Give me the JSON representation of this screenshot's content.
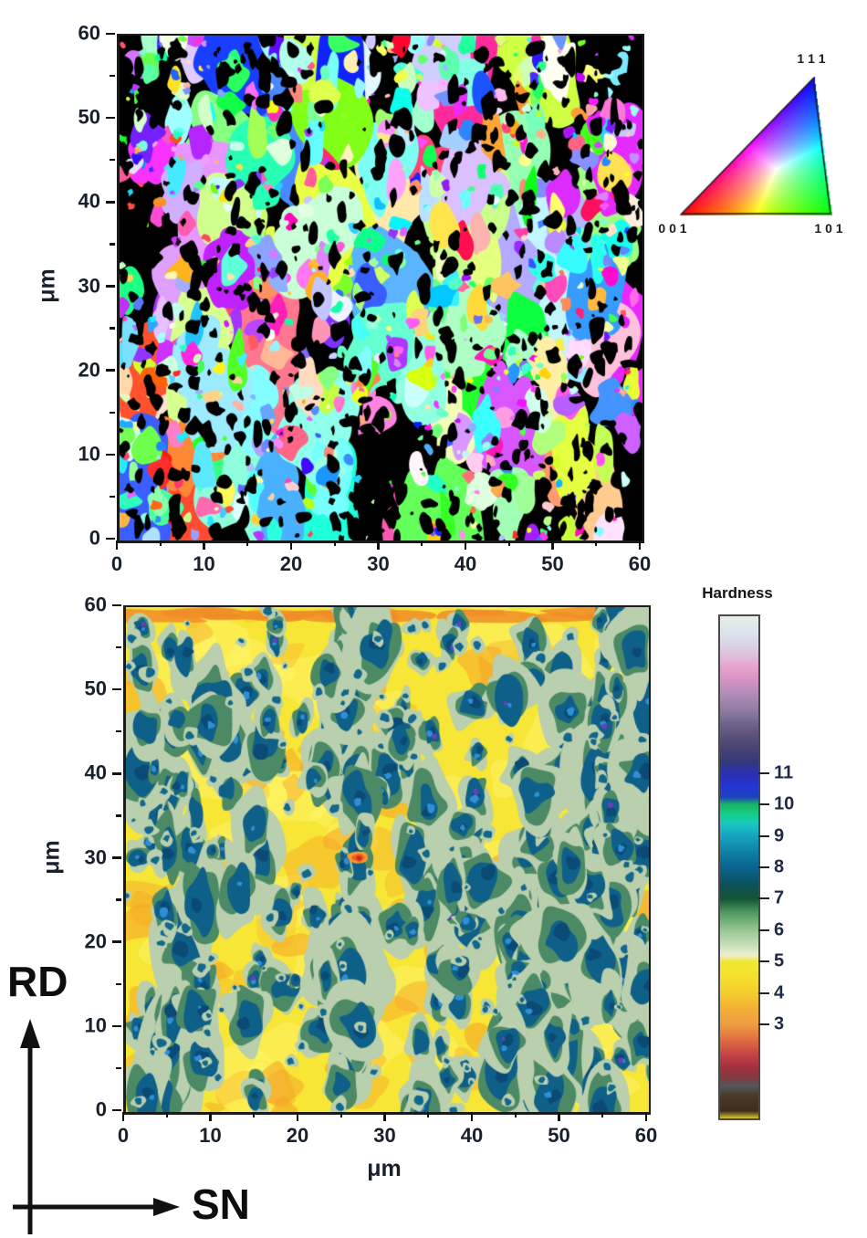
{
  "page": {
    "background": "#ffffff"
  },
  "top_plot": {
    "ylabel": "μm",
    "x_tick_labels": [
      "0",
      "10",
      "20",
      "30",
      "40",
      "50",
      "60"
    ],
    "y_tick_labels": [
      "0",
      "10",
      "20",
      "30",
      "40",
      "50",
      "60"
    ]
  },
  "ipf_legend": {
    "label_111": "1 1 1",
    "label_001": "0 0 1",
    "label_101": "1 0 1",
    "corner_colors": {
      "001": "#ff2020",
      "101": "#20dd20",
      "111": "#2020ff"
    }
  },
  "bottom_plot": {
    "xlabel": "μm",
    "ylabel": "μm",
    "x_tick_labels": [
      "0",
      "10",
      "20",
      "30",
      "40",
      "50",
      "60"
    ],
    "y_tick_labels": [
      "0",
      "10",
      "20",
      "30",
      "40",
      "50",
      "60"
    ]
  },
  "colorbar": {
    "title": "Hardness",
    "tick_labels": [
      "11",
      "10",
      "9",
      "8",
      "7",
      "6",
      "5",
      "4",
      "3"
    ],
    "tick_values": [
      11,
      10,
      9,
      8,
      7,
      6,
      5,
      4,
      3
    ],
    "value_range": [
      0,
      16
    ],
    "gradient_stops": [
      {
        "p": 0.0,
        "c": "#e7efe9"
      },
      {
        "p": 0.035,
        "c": "#d9e4ec"
      },
      {
        "p": 0.07,
        "c": "#dcc9df"
      },
      {
        "p": 0.1,
        "c": "#e9a3cd"
      },
      {
        "p": 0.125,
        "c": "#d893c4"
      },
      {
        "p": 0.155,
        "c": "#b08cb8"
      },
      {
        "p": 0.19,
        "c": "#8b7aa2"
      },
      {
        "p": 0.225,
        "c": "#655a82"
      },
      {
        "p": 0.26,
        "c": "#4a4472"
      },
      {
        "p": 0.29,
        "c": "#333a78"
      },
      {
        "p": 0.3125,
        "c": "#2b2fb4"
      },
      {
        "p": 0.34,
        "c": "#2336d2"
      },
      {
        "p": 0.36,
        "c": "#1d41c0"
      },
      {
        "p": 0.375,
        "c": "#19b564"
      },
      {
        "p": 0.395,
        "c": "#14cf8a"
      },
      {
        "p": 0.412,
        "c": "#19c9c0"
      },
      {
        "p": 0.4375,
        "c": "#17a3c2"
      },
      {
        "p": 0.47,
        "c": "#0f80a4"
      },
      {
        "p": 0.5,
        "c": "#0b6390"
      },
      {
        "p": 0.53,
        "c": "#0b5360"
      },
      {
        "p": 0.5625,
        "c": "#155335"
      },
      {
        "p": 0.59,
        "c": "#4e9a5f"
      },
      {
        "p": 0.625,
        "c": "#97c693"
      },
      {
        "p": 0.655,
        "c": "#c8dfba"
      },
      {
        "p": 0.675,
        "c": "#eeeed0"
      },
      {
        "p": 0.6875,
        "c": "#f0e834"
      },
      {
        "p": 0.72,
        "c": "#f6df2d"
      },
      {
        "p": 0.75,
        "c": "#f4cd2d"
      },
      {
        "p": 0.78,
        "c": "#f3b135"
      },
      {
        "p": 0.8125,
        "c": "#ee9d41"
      },
      {
        "p": 0.845,
        "c": "#e06a42"
      },
      {
        "p": 0.875,
        "c": "#c24145"
      },
      {
        "p": 0.9,
        "c": "#a03140"
      },
      {
        "p": 0.92,
        "c": "#7e3a40"
      },
      {
        "p": 0.935,
        "c": "#53585a"
      },
      {
        "p": 0.955,
        "c": "#4b3a28"
      },
      {
        "p": 0.985,
        "c": "#3e2b1c"
      },
      {
        "p": 1.0,
        "c": "#d8c62d"
      }
    ]
  },
  "orientation_indicator": {
    "vertical_label": "RD",
    "horizontal_label": "SN"
  },
  "chart_data": [
    {
      "type": "heatmap",
      "name": "EBSD IPF orientation map",
      "xlabel": "",
      "ylabel": "μm",
      "x_range": [
        0,
        60
      ],
      "y_range": [
        0,
        60
      ],
      "x_ticks": [
        0,
        10,
        20,
        30,
        40,
        50,
        60
      ],
      "y_ticks": [
        0,
        10,
        20,
        30,
        40,
        50,
        60
      ],
      "minor_tick_step": 5,
      "units": "μm",
      "description": "Speckled grain-orientation map: irregular grains colored green, magenta, purple, periwinkle blue, red, salmon, cyan, pink, cream, lavender and orange on a black (unindexed) background; grains loosely arranged in vertical bands",
      "legend": {
        "type": "ipf-color-triangle",
        "corners": [
          "0 0 1",
          "1 0 1",
          "1 1 1"
        ],
        "corner_colors": {
          "001": "#ff2020",
          "101": "#20dd20",
          "111": "#2020ff"
        }
      }
    },
    {
      "type": "heatmap",
      "name": "Hardness contour map",
      "title": "Hardness",
      "xlabel": "μm",
      "ylabel": "μm",
      "x_range": [
        0,
        60
      ],
      "y_range": [
        0,
        60
      ],
      "x_ticks": [
        0,
        10,
        20,
        30,
        40,
        50,
        60
      ],
      "y_ticks": [
        0,
        10,
        20,
        30,
        40,
        50,
        60
      ],
      "minor_tick_step": 5,
      "colorbar_ticks": [
        11,
        10,
        9,
        8,
        7,
        6,
        5,
        4,
        3
      ],
      "colorbar_range": [
        0,
        16
      ],
      "matrix_color": "#f7e636",
      "description": "Yellow matrix (hardness ~4-5) with vertically streaked dark-teal/blue regions (~8-11) rimmed by dark green (~7) and sage green (~6); scattered orange patches (~3-4); horizontal orange streak near the top edge; one small red-orange hot spot near (27, 30)"
    }
  ]
}
